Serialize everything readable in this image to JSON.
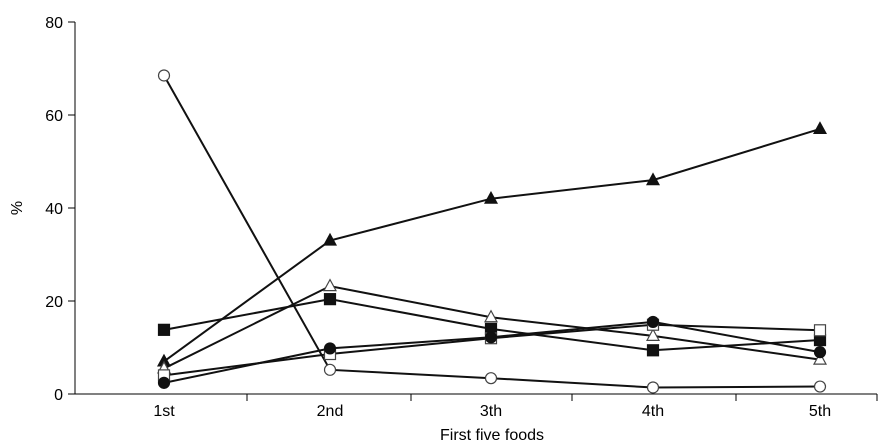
{
  "chart_data": {
    "type": "line",
    "title": "",
    "xlabel": "First five foods",
    "ylabel": "%",
    "categories": [
      "1st",
      "2nd",
      "3th",
      "4th",
      "5th"
    ],
    "ylim": [
      0,
      80
    ],
    "yticks": [
      0,
      20,
      40,
      60,
      80
    ],
    "grid": false,
    "series": [
      {
        "marker": "filled-triangle",
        "values": [
          7,
          33,
          42,
          46,
          57
        ]
      },
      {
        "marker": "open-circle",
        "values": [
          68.5,
          5.2,
          3.4,
          1.4,
          1.6
        ]
      },
      {
        "marker": "filled-square",
        "values": [
          13.8,
          20.4,
          14.0,
          9.4,
          11.6
        ]
      },
      {
        "marker": "open-triangle",
        "values": [
          5.5,
          23.2,
          16.5,
          12.5,
          7.4
        ]
      },
      {
        "marker": "open-square",
        "values": [
          4.0,
          8.6,
          12.0,
          14.9,
          13.7
        ]
      },
      {
        "marker": "filled-circle",
        "values": [
          2.4,
          9.8,
          12.2,
          15.5,
          9.0
        ]
      }
    ]
  }
}
